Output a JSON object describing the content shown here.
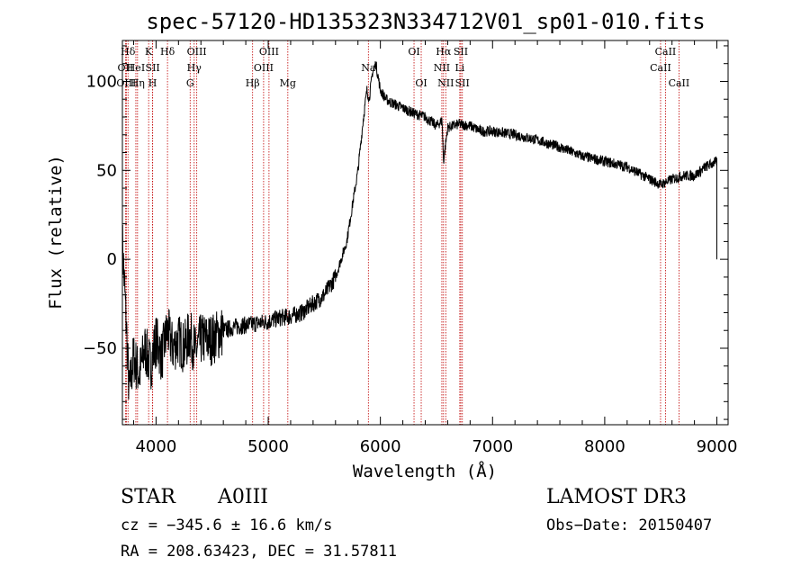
{
  "chart_data": {
    "type": "line",
    "title": "spec-57120-HD135323N334712V01_sp01-010.fits",
    "xlabel": "Wavelength (Å)",
    "ylabel": "Flux (relative)",
    "xlim": [
      3700,
      9100
    ],
    "ylim": [
      -93,
      123
    ],
    "x_ticks": [
      4000,
      5000,
      6000,
      7000,
      8000,
      9000
    ],
    "y_ticks": [
      -50,
      0,
      50,
      100
    ],
    "grid": false,
    "series": [
      {
        "x": [
          3700,
          3730,
          3760,
          3800,
          3850,
          3900,
          3950,
          4000,
          4050,
          4100,
          4150,
          4200,
          4250,
          4300,
          4350,
          4400,
          4500,
          4600,
          4700,
          4800,
          4900,
          5000,
          5100,
          5200,
          5300,
          5400,
          5500,
          5600,
          5650,
          5700,
          5750,
          5800,
          5850,
          5880,
          5900,
          5930,
          5960,
          6000,
          6050,
          6100,
          6200,
          6300,
          6400,
          6500,
          6550,
          6563,
          6600,
          6700,
          6800,
          6900,
          7000,
          7200,
          7400,
          7600,
          7800,
          8000,
          8200,
          8400,
          8500,
          8600,
          8700,
          8800,
          8900,
          9000
        ],
        "y": [
          10,
          -30,
          -75,
          -55,
          -65,
          -50,
          -60,
          -45,
          -55,
          -40,
          -50,
          -45,
          -50,
          -42,
          -52,
          -45,
          -45,
          -40,
          -38,
          -37,
          -36,
          -35,
          -33,
          -32,
          -30,
          -25,
          -20,
          -10,
          0,
          10,
          30,
          50,
          80,
          95,
          90,
          105,
          110,
          95,
          90,
          88,
          85,
          82,
          80,
          75,
          78,
          55,
          74,
          76,
          75,
          72,
          72,
          70,
          67,
          63,
          58,
          55,
          52,
          45,
          42,
          45,
          47,
          47,
          52,
          55
        ]
      }
    ],
    "line_markers": [
      {
        "label": "Hδ",
        "x": 3750,
        "row": 1
      },
      {
        "label": "OII",
        "x": 3727,
        "row": 2
      },
      {
        "label": "OIII",
        "x": 3735,
        "row": 3
      },
      {
        "label": "HeI",
        "x": 3820,
        "row": 2
      },
      {
        "label": "Hη",
        "x": 3835,
        "row": 3
      },
      {
        "label": "K",
        "x": 3934,
        "row": 1
      },
      {
        "label": "SII",
        "x": 3970,
        "row": 2
      },
      {
        "label": "H",
        "x": 3969,
        "row": 3
      },
      {
        "label": "Hδ",
        "x": 4102,
        "row": 1
      },
      {
        "label": "OIII",
        "x": 4363,
        "row": 1
      },
      {
        "label": "Hγ",
        "x": 4340,
        "row": 2
      },
      {
        "label": "G",
        "x": 4304,
        "row": 3
      },
      {
        "label": "OIII",
        "x": 5007,
        "row": 1
      },
      {
        "label": "OIII",
        "x": 4959,
        "row": 2
      },
      {
        "label": "Hβ",
        "x": 4861,
        "row": 3
      },
      {
        "label": "Mg",
        "x": 5175,
        "row": 3
      },
      {
        "label": "Na",
        "x": 5893,
        "row": 2
      },
      {
        "label": "OI",
        "x": 6300,
        "row": 1
      },
      {
        "label": "OI",
        "x": 6364,
        "row": 3
      },
      {
        "label": "Hα",
        "x": 6563,
        "row": 1
      },
      {
        "label": "SII",
        "x": 6717,
        "row": 1
      },
      {
        "label": "NII",
        "x": 6548,
        "row": 2
      },
      {
        "label": "Li",
        "x": 6708,
        "row": 2
      },
      {
        "label": "NII",
        "x": 6583,
        "row": 3
      },
      {
        "label": "SII",
        "x": 6731,
        "row": 3
      },
      {
        "label": "CaII",
        "x": 8542,
        "row": 1
      },
      {
        "label": "CaII",
        "x": 8498,
        "row": 2
      },
      {
        "label": "CaII",
        "x": 8662,
        "row": 3
      }
    ]
  },
  "info": {
    "class_label": "STAR",
    "subclass": "A0III",
    "survey": "LAMOST DR3",
    "cz": "cz = −345.6 ± 16.6 km/s",
    "obs_date": "Obs−Date: 20150407",
    "coords": "RA = 208.63423, DEC =  31.57811"
  }
}
